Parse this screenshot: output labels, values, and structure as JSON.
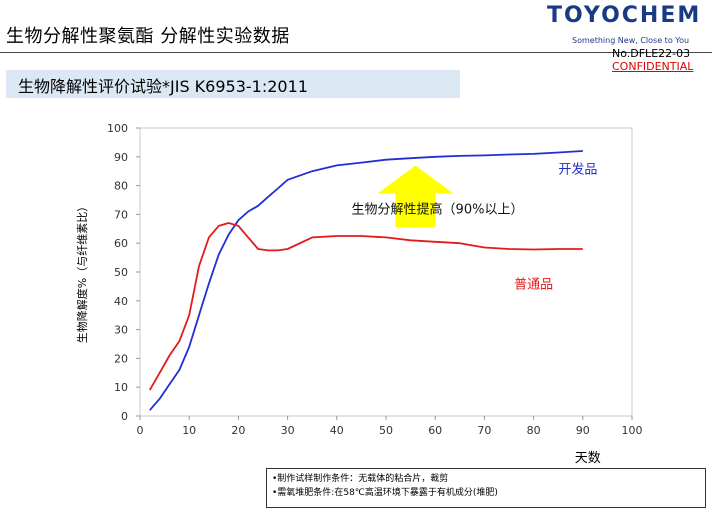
{
  "header": {
    "title": "生物分解性聚氨酯 分解性实验数据",
    "logo": "TOYOCHEM",
    "tagline": "Something New, Close to You",
    "doc_no": "No.DFLE22-03",
    "confidential": "CONFIDENTIAL",
    "brand_color": "#1b3a86"
  },
  "banner": {
    "text": "生物降解性评价试验*JIS K6953-1:2011",
    "bg_color": "#dbe8f3"
  },
  "chart_data": {
    "type": "line",
    "xlabel": "天数",
    "ylabel": "生物降解度%（与纤维素比）",
    "xlim": [
      0,
      100
    ],
    "ylim": [
      0,
      100
    ],
    "xticks": [
      0,
      10,
      20,
      30,
      40,
      50,
      60,
      70,
      80,
      90,
      100
    ],
    "yticks": [
      0,
      10,
      20,
      30,
      40,
      50,
      60,
      70,
      80,
      90,
      100
    ],
    "grid": false,
    "series": [
      {
        "name": "开发品",
        "color": "#1f2fd6",
        "x": [
          2,
          4,
          6,
          8,
          10,
          12,
          14,
          16,
          18,
          20,
          22,
          24,
          26,
          28,
          30,
          35,
          40,
          45,
          50,
          55,
          60,
          65,
          70,
          75,
          80,
          85,
          90
        ],
        "y": [
          2,
          6,
          11,
          16,
          24,
          35,
          46,
          56,
          63,
          68,
          71,
          73,
          76,
          79,
          82,
          85,
          87,
          88,
          89,
          89.5,
          90,
          90.3,
          90.5,
          90.8,
          91,
          91.5,
          92
        ]
      },
      {
        "name": "普通品",
        "color": "#e41a1a",
        "x": [
          2,
          4,
          6,
          8,
          10,
          12,
          14,
          16,
          18,
          20,
          22,
          24,
          26,
          28,
          30,
          35,
          40,
          45,
          50,
          55,
          60,
          65,
          70,
          75,
          80,
          85,
          90
        ],
        "y": [
          9,
          15,
          21,
          26,
          35,
          52,
          62,
          66,
          67,
          66,
          62,
          58,
          57.5,
          57.5,
          58,
          62,
          62.5,
          62.5,
          62,
          61,
          60.5,
          60,
          58.5,
          58,
          57.8,
          58,
          58
        ]
      }
    ],
    "annotation": {
      "text": "生物分解性提高（90%以上）",
      "arrow_color": "#ffff00"
    }
  },
  "notes": [
    "•制作试样制作条件：无载体的粘合片，裁剪",
    "•需氧堆肥条件:在58℃高温环境下暴露于有机成分(堆肥)"
  ]
}
